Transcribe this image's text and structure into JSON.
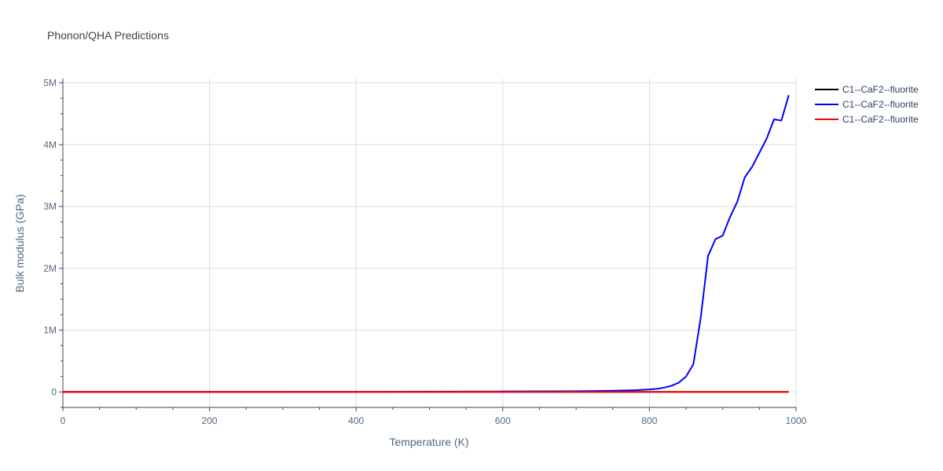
{
  "chart_data": {
    "type": "line",
    "title": "Phonon/QHA Predictions",
    "xlabel": "Temperature (K)",
    "ylabel": "Bulk modulus (GPa)",
    "xlim": [
      0,
      1000
    ],
    "ylim": [
      -250000,
      5070000
    ],
    "x_ticks": [
      0,
      200,
      400,
      600,
      800,
      1000
    ],
    "x_tick_labels": [
      "0",
      "200",
      "400",
      "600",
      "800",
      "1000"
    ],
    "y_ticks": [
      0,
      1000000,
      2000000,
      3000000,
      4000000,
      5000000
    ],
    "y_tick_labels": [
      "0",
      "1M",
      "2M",
      "3M",
      "4M",
      "5M"
    ],
    "grid": true,
    "legend_position": "top-right",
    "series": [
      {
        "name": "C1--CaF2--fluorite",
        "color": "#000000",
        "x": [
          0,
          100,
          200,
          300,
          400,
          500,
          600,
          700,
          800,
          900,
          990
        ],
        "y": [
          82,
          81,
          80,
          79,
          78,
          77,
          76,
          75,
          74,
          73,
          72
        ]
      },
      {
        "name": "C1--CaF2--fluorite",
        "color": "#0000ff",
        "x": [
          0,
          100,
          200,
          300,
          400,
          500,
          600,
          700,
          750,
          780,
          800,
          810,
          820,
          830,
          840,
          850,
          860,
          870,
          880,
          890,
          900,
          910,
          920,
          930,
          940,
          950,
          960,
          970,
          980,
          990
        ],
        "y": [
          80,
          150,
          500,
          1500,
          3000,
          5000,
          8000,
          12000,
          20000,
          28000,
          40000,
          50000,
          70000,
          100000,
          150000,
          250000,
          450000,
          1200000,
          2200000,
          2470000,
          2530000,
          2830000,
          3080000,
          3470000,
          3640000,
          3870000,
          4100000,
          4410000,
          4390000,
          4800000
        ]
      },
      {
        "name": "C1--CaF2--fluorite",
        "color": "#ff0000",
        "x": [
          0,
          100,
          200,
          300,
          400,
          500,
          600,
          700,
          800,
          900,
          990
        ],
        "y": [
          82,
          81,
          80,
          79,
          78,
          77,
          76,
          75,
          74,
          73,
          72
        ]
      }
    ]
  }
}
